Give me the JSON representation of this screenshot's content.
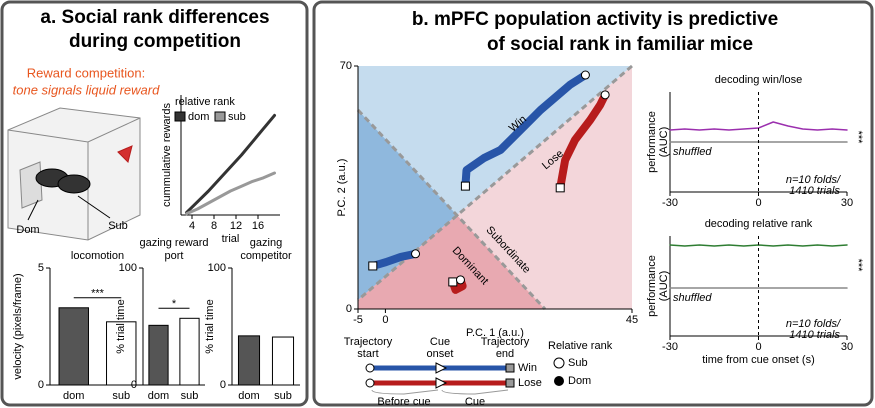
{
  "panel_a": {
    "title_1": "a. Social rank differences",
    "title_2": "during competition",
    "reward_line_1": "Reward competition:",
    "reward_line_2": "tone signals liquid reward",
    "dom_label": "Dom",
    "sub_label": "Sub"
  },
  "panel_b": {
    "title_1": "b. mPFC population activity is predictive",
    "title_2": "of social rank in familiar mice",
    "legend": {
      "trajectory_start": [
        "Trajectory",
        "start"
      ],
      "cue_onset": [
        "Cue",
        "onset"
      ],
      "trajectory_end": [
        "Trajectory",
        "end"
      ],
      "win": "Win",
      "lose": "Lose",
      "before_cue": "Before cue",
      "cue": "Cue",
      "relative_rank": "Relative rank",
      "sub": "Sub",
      "dom": "Dom"
    }
  },
  "chart_data": [
    {
      "type": "line",
      "xlabel": "trial",
      "ylabel": "cummulative rewards",
      "legend_title": "relative rank",
      "x": [
        3,
        5,
        7,
        9,
        11,
        13,
        15,
        17,
        19
      ],
      "xlim": [
        2,
        20
      ],
      "xticks": [
        4,
        8,
        12,
        16
      ],
      "ylim": [
        0,
        10
      ],
      "series": [
        {
          "name": "dom",
          "color": "#333333",
          "values": [
            0.2,
            1.1,
            2.0,
            3.0,
            4.0,
            5.0,
            6.1,
            7.2,
            8.3
          ]
        },
        {
          "name": "sub",
          "color": "#999999",
          "values": [
            0.1,
            0.5,
            1.0,
            1.5,
            2.0,
            2.4,
            2.8,
            3.1,
            3.5
          ]
        }
      ]
    },
    {
      "type": "bar",
      "title": "locomotion",
      "ylabel": "velocity (pixels/frame)",
      "categories": [
        "dom",
        "sub"
      ],
      "values": [
        3.3,
        2.7
      ],
      "colors": [
        "#555555",
        "#ffffff"
      ],
      "ylim": [
        0,
        5
      ],
      "yticks": [
        0,
        5
      ],
      "significance": "***"
    },
    {
      "type": "bar",
      "title": [
        "gazing reward",
        "port"
      ],
      "ylabel": "% trial time",
      "categories": [
        "dom",
        "sub"
      ],
      "values": [
        51,
        57
      ],
      "colors": [
        "#555555",
        "#ffffff"
      ],
      "ylim": [
        0,
        100
      ],
      "yticks": [
        0,
        100
      ],
      "significance": "*"
    },
    {
      "type": "bar",
      "title": [
        "gazing",
        "competitor"
      ],
      "ylabel": "% trial time",
      "categories": [
        "dom",
        "sub"
      ],
      "values": [
        42,
        41
      ],
      "colors": [
        "#555555",
        "#ffffff"
      ],
      "ylim": [
        0,
        100
      ],
      "yticks": [
        0,
        100
      ]
    },
    {
      "type": "line",
      "xlabel": "P.C. 1 (a.u.)",
      "ylabel": "P.C. 2 (a.u.)",
      "xlim": [
        -5,
        45
      ],
      "xticks": [
        -5,
        0,
        45
      ],
      "ylim": [
        0,
        70
      ],
      "yticks": [
        0,
        70
      ],
      "annotations": [
        "Win",
        "Lose",
        "Subordinate",
        "Dominant"
      ],
      "series": [
        {
          "color": "#2855a8",
          "x": [
            14.6,
            14.8,
            18,
            21,
            28.3,
            33.7,
            36.5
          ],
          "values": [
            35.4,
            40,
            43.5,
            45.8,
            57.3,
            64.6,
            67.4
          ]
        },
        {
          "color": "#b71c1c",
          "x": [
            31.9,
            32.8,
            34.6,
            37.4,
            39.2,
            40.1
          ],
          "values": [
            34.9,
            42.9,
            48.7,
            54.5,
            58.8,
            61.7
          ]
        },
        {
          "color": "#2855a8",
          "x": [
            -2.3,
            0.1,
            2.8,
            5.5
          ],
          "values": [
            12.4,
            13.5,
            15,
            15.9
          ]
        },
        {
          "color": "#b71c1c",
          "x": [
            12.3,
            12.8,
            14.1,
            13.7
          ],
          "values": [
            7.8,
            5.5,
            6.6,
            8.4
          ]
        }
      ]
    },
    {
      "type": "line",
      "title": "decoding win/lose",
      "ylabel": [
        "performance",
        "(AUC)"
      ],
      "x": [
        -30,
        -25,
        -20,
        -15,
        -10,
        -5,
        0,
        5,
        10,
        15,
        20,
        25,
        30
      ],
      "xlim": [
        -30,
        30
      ],
      "xticks": [
        -30,
        0,
        30
      ],
      "ylim": [
        0,
        1
      ],
      "cue_onset": 0,
      "annotations": [
        "***",
        "n=10 folds/",
        "1410 trials"
      ],
      "series": [
        {
          "color": "#9b2fae",
          "values": [
            0.62,
            0.63,
            0.62,
            0.63,
            0.62,
            0.63,
            0.64,
            0.7,
            0.66,
            0.63,
            0.62,
            0.63,
            0.62
          ]
        },
        {
          "name": "shuffled",
          "color": "#888888",
          "values": [
            0.5,
            0.5,
            0.5,
            0.5,
            0.5,
            0.5,
            0.5,
            0.5,
            0.5,
            0.5,
            0.5,
            0.5,
            0.5
          ]
        }
      ]
    },
    {
      "type": "line",
      "title": "decoding relative rank",
      "xlabel": "time from cue onset (s)",
      "ylabel": [
        "performance",
        "(AUC)"
      ],
      "x": [
        -30,
        -25,
        -20,
        -15,
        -10,
        -5,
        0,
        5,
        10,
        15,
        20,
        25,
        30
      ],
      "xlim": [
        -30,
        30
      ],
      "xticks": [
        -30,
        0,
        30
      ],
      "ylim": [
        0,
        1
      ],
      "cue_onset": 0,
      "annotations": [
        "***",
        "n=10 folds/",
        "1410 trials"
      ],
      "series": [
        {
          "color": "#2e7d32",
          "values": [
            0.91,
            0.9,
            0.91,
            0.9,
            0.91,
            0.9,
            0.91,
            0.9,
            0.91,
            0.9,
            0.91,
            0.9,
            0.91
          ]
        },
        {
          "name": "shuffled",
          "color": "#888888",
          "values": [
            0.48,
            0.48,
            0.48,
            0.48,
            0.48,
            0.48,
            0.48,
            0.48,
            0.48,
            0.48,
            0.48,
            0.48,
            0.48
          ]
        }
      ]
    }
  ]
}
